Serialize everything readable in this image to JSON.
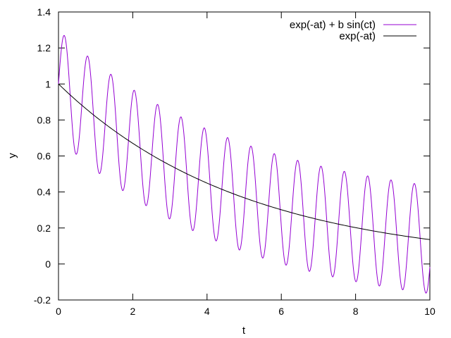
{
  "chart_data": {
    "type": "line",
    "title": "",
    "xlabel": "t",
    "ylabel": "y",
    "xlim": [
      0,
      10
    ],
    "ylim": [
      -0.2,
      1.4
    ],
    "xticks": [
      "0",
      "2",
      "4",
      "6",
      "8",
      "10"
    ],
    "yticks": [
      "-0.2",
      "0",
      "0.2",
      "0.4",
      "0.6",
      "0.8",
      "1",
      "1.2",
      "1.4"
    ],
    "grid": false,
    "legend_position": "top-right",
    "series": [
      {
        "name": "exp(-at) + b sin(ct)",
        "color": "#9400d3",
        "formula": "exp(-0.2*t) + 0.3*sin(10*t)",
        "a": 0.2,
        "b": 0.3,
        "c": 10,
        "x_range": [
          0,
          10
        ],
        "samples": 1000
      },
      {
        "name": "exp(-at)",
        "color": "#000000",
        "formula": "exp(-0.2*t)",
        "a": 0.2,
        "x_range": [
          0,
          10
        ],
        "samples": 200
      }
    ]
  }
}
